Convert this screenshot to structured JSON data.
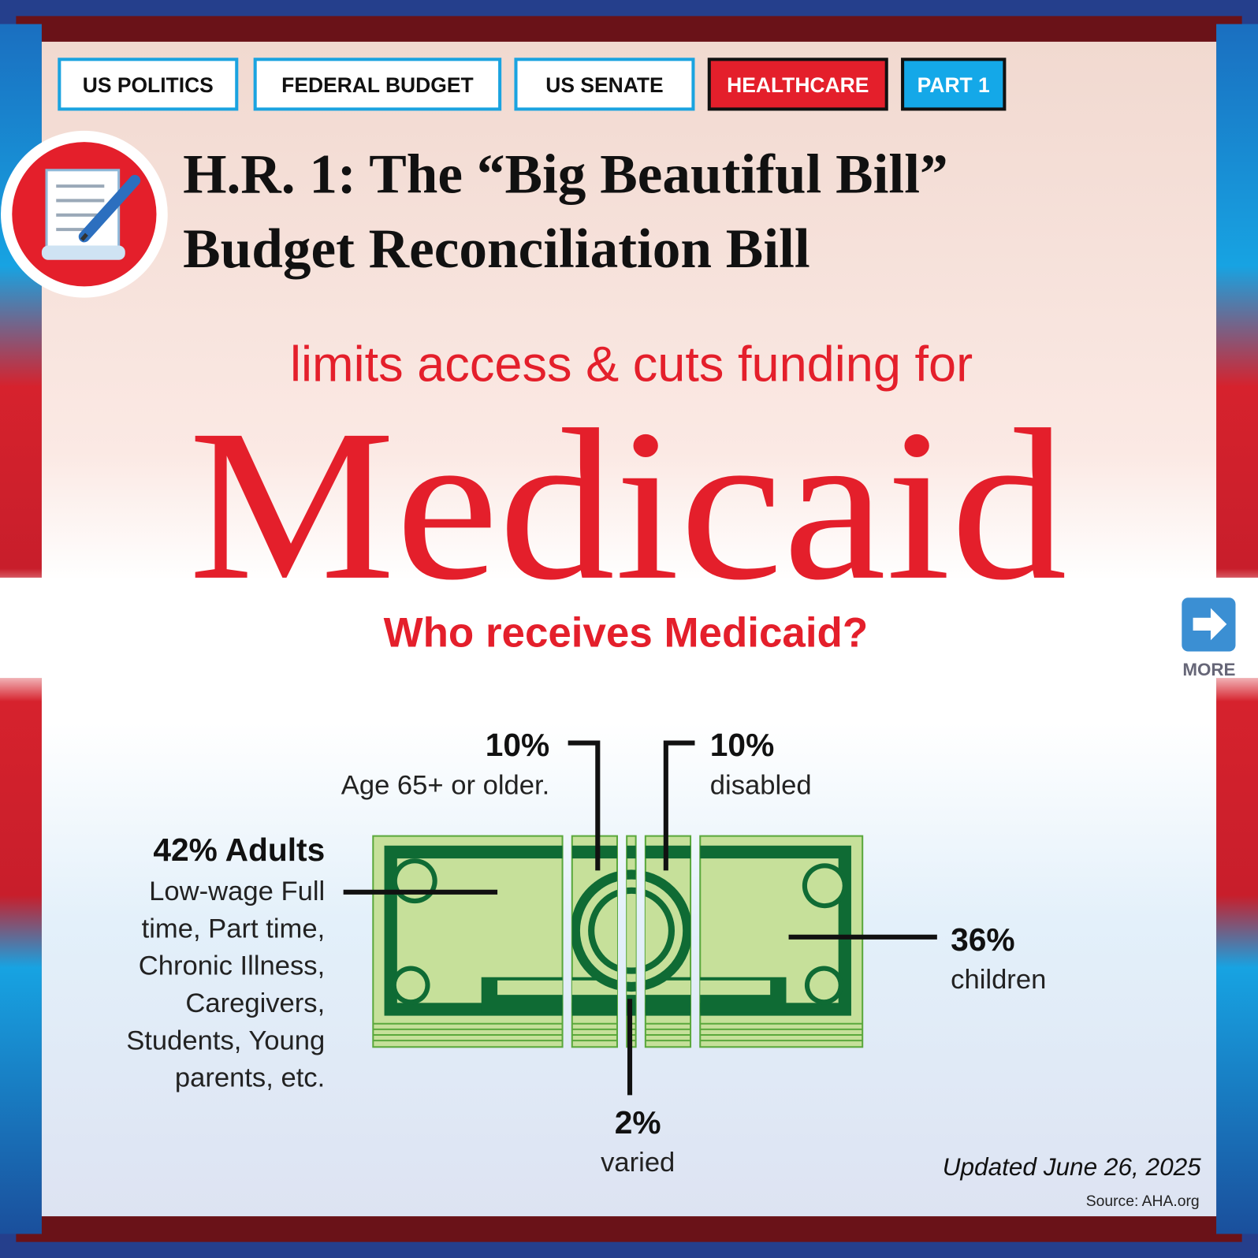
{
  "tags": [
    "US POLITICS",
    "FEDERAL BUDGET",
    "US SENATE",
    "HEALTHCARE",
    "PART 1"
  ],
  "header": {
    "title_line1": "H.R. 1: The “Big Beautiful Bill”",
    "title_line2": "Budget Reconciliation Bill",
    "lead": "limits access & cuts funding for",
    "subject": "Medicaid"
  },
  "more": "MORE",
  "chart_data": {
    "type": "bill",
    "title": "Who receives Medicaid?",
    "values": [
      42,
      10,
      2,
      10,
      36
    ],
    "value_labels": [
      "42% Adults",
      "10%",
      "2%",
      "10%",
      "36%"
    ],
    "descriptions": [
      [
        "Low-wage Full",
        "time, Part time,",
        "Chronic Illness,",
        "Caregivers,",
        "Students, Young",
        "parents, etc."
      ],
      [
        "Age 65+ or older."
      ],
      [
        "varied"
      ],
      [
        "disabled"
      ],
      [
        "children"
      ]
    ],
    "color": "#c6e09a"
  },
  "footer": {
    "updated": "Updated June 26, 2025",
    "source": "Source: AHA.org"
  }
}
